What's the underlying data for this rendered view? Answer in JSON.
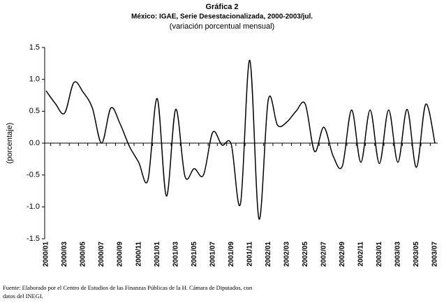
{
  "chart_data": {
    "type": "line",
    "title": "Gráfica 2",
    "subtitle": "México: IGAE, Serie Desestacionalizada, 2000-2003/jul.",
    "subtitle2": "(variación porcentual mensual)",
    "ylabel": "(porcentaje)",
    "source": [
      "Fuente: Elaborado por el Centro de Estudios de las Finanzas Públicas de la H. Cámara de Diputados, con",
      "datos del INEGI."
    ],
    "categories": [
      "2000/01",
      null,
      "2000/03",
      null,
      "2000/05",
      null,
      "2000/07",
      null,
      "2000/09",
      null,
      "2000/11",
      null,
      "2001/01",
      null,
      "2001/03",
      null,
      "2001/05",
      null,
      "2001/07",
      null,
      "2001/09",
      null,
      "2001/11",
      null,
      "2002/01",
      null,
      "2002/03",
      null,
      "2002/05",
      null,
      "2002/07",
      null,
      "2002/09",
      null,
      "2002/11",
      null,
      "2003/01",
      null,
      "2003/03",
      null,
      "2003/05",
      null,
      "2003/07"
    ],
    "values": [
      0.82,
      0.62,
      0.47,
      0.95,
      0.8,
      0.55,
      0.0,
      0.55,
      0.3,
      -0.05,
      -0.3,
      -0.58,
      0.7,
      -0.83,
      0.53,
      -0.52,
      -0.4,
      -0.5,
      0.17,
      -0.03,
      -0.02,
      -0.95,
      1.3,
      -1.19,
      0.68,
      0.28,
      0.33,
      0.5,
      0.61,
      -0.13,
      0.25,
      -0.2,
      -0.36,
      0.52,
      -0.3,
      0.52,
      -0.32,
      0.52,
      -0.3,
      0.53,
      -0.38,
      0.61,
      0.0
    ],
    "color": "#000000",
    "ylim": [
      -1.5,
      1.5
    ],
    "yticks": [
      {
        "value": -1.5,
        "label": "-1.5"
      },
      {
        "value": -1,
        "label": "-1.0"
      },
      {
        "value": -0.5,
        "label": "-0.5"
      },
      {
        "value": 0,
        "label": "0.0"
      },
      {
        "value": 0.5,
        "label": "0.5"
      },
      {
        "value": 1,
        "label": "1.0"
      },
      {
        "value": 1.5,
        "label": "1.5"
      }
    ],
    "grid": false
  }
}
